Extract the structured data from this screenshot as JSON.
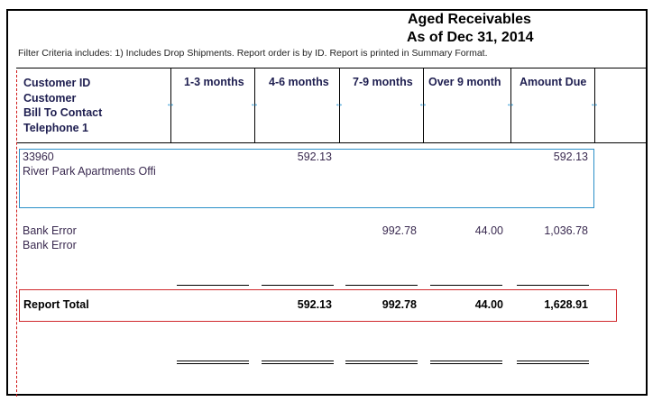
{
  "report": {
    "title": "Aged Receivables",
    "subtitle": "As of Dec 31, 2014",
    "filter_text": "Filter Criteria includes: 1) Includes Drop Shipments. Report order is by ID. Report is printed in Summary Format."
  },
  "columns": {
    "customer_id": "Customer ID",
    "customer": "Customer",
    "bill_to_contact": "Bill To Contact",
    "telephone": "Telephone 1",
    "c1_3": "1-3 months",
    "c4_6": "4-6 months",
    "c7_9": "7-9 months",
    "over9": "Over 9 month",
    "amount_due": "Amount Due"
  },
  "rows": [
    {
      "id": "33960",
      "name": "River Park Apartments Offi",
      "c1_3": "",
      "c4_6": "592.13",
      "c7_9": "",
      "over9": "",
      "amount_due": "592.13"
    },
    {
      "id": "Bank Error",
      "name": "Bank Error",
      "c1_3": "",
      "c4_6": "",
      "c7_9": "992.78",
      "over9": "44.00",
      "amount_due": "1,036.78"
    }
  ],
  "total": {
    "label": "Report Total",
    "c1_3": "",
    "c4_6": "592.13",
    "c7_9": "992.78",
    "over9": "44.00",
    "amount_due": "1,628.91"
  },
  "icons": {
    "column_resize": "resize-handle-icon",
    "resize_glyph": "↔"
  },
  "colors": {
    "selection_border": "#2a8fc8",
    "total_border": "#d0282c",
    "margin_guide": "#d01818"
  }
}
